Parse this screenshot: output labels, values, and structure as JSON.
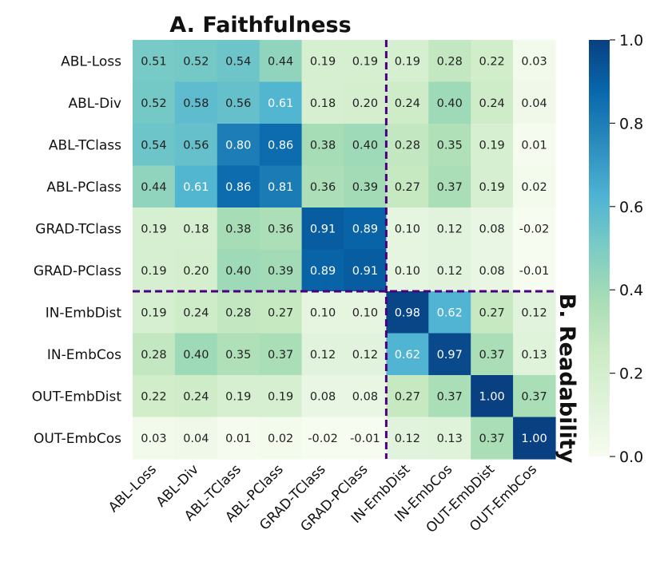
{
  "chart_data": {
    "type": "heatmap",
    "title": "A. Faithfulness",
    "side_title": "B. Readability",
    "rows": [
      "ABL-Loss",
      "ABL-Div",
      "ABL-TClass",
      "ABL-PClass",
      "GRAD-TClass",
      "GRAD-PClass",
      "IN-EmbDist",
      "IN-EmbCos",
      "OUT-EmbDist",
      "OUT-EmbCos"
    ],
    "columns": [
      "ABL-Loss",
      "ABL-Div",
      "ABL-TClass",
      "ABL-PClass",
      "GRAD-TClass",
      "GRAD-PClass",
      "IN-EmbDist",
      "IN-EmbCos",
      "OUT-EmbDist",
      "OUT-EmbCos"
    ],
    "values": [
      [
        0.51,
        0.52,
        0.54,
        0.44,
        0.19,
        0.19,
        0.19,
        0.28,
        0.22,
        0.03
      ],
      [
        0.52,
        0.58,
        0.56,
        0.61,
        0.18,
        0.2,
        0.24,
        0.4,
        0.24,
        0.04
      ],
      [
        0.54,
        0.56,
        0.8,
        0.86,
        0.38,
        0.4,
        0.28,
        0.35,
        0.19,
        0.01
      ],
      [
        0.44,
        0.61,
        0.86,
        0.81,
        0.36,
        0.39,
        0.27,
        0.37,
        0.19,
        0.02
      ],
      [
        0.19,
        0.18,
        0.38,
        0.36,
        0.91,
        0.89,
        0.1,
        0.12,
        0.08,
        -0.02
      ],
      [
        0.19,
        0.2,
        0.4,
        0.39,
        0.89,
        0.91,
        0.1,
        0.12,
        0.08,
        -0.01
      ],
      [
        0.19,
        0.24,
        0.28,
        0.27,
        0.1,
        0.1,
        0.98,
        0.62,
        0.27,
        0.12
      ],
      [
        0.28,
        0.4,
        0.35,
        0.37,
        0.12,
        0.12,
        0.62,
        0.97,
        0.37,
        0.13
      ],
      [
        0.22,
        0.24,
        0.19,
        0.19,
        0.08,
        0.08,
        0.27,
        0.37,
        1.0,
        0.37
      ],
      [
        0.03,
        0.04,
        0.01,
        0.02,
        -0.02,
        -0.01,
        0.12,
        0.13,
        0.37,
        1.0
      ]
    ],
    "value_format": "2dp",
    "colorbar": {
      "min": 0.0,
      "max": 1.0,
      "ticks": [
        "0.0",
        "0.2",
        "0.4",
        "0.6",
        "0.8",
        "1.0"
      ],
      "colormap": "GnBu"
    },
    "divider_color": "#4b0082",
    "dividers": {
      "vertical_after_column": 6,
      "horizontal_after_row": 6
    }
  }
}
